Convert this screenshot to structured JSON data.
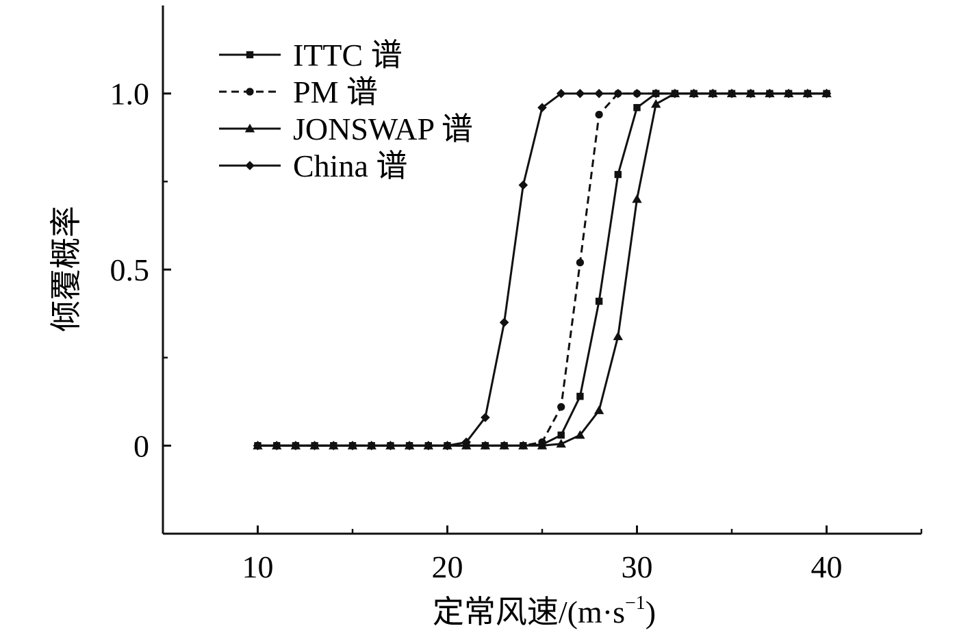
{
  "chart_data": {
    "type": "line",
    "xlabel": "定常风速/(m·s",
    "xlabel_sup": "−1",
    "xlabel_close": ")",
    "ylabel": "倾覆概率",
    "xlim": [
      5,
      45
    ],
    "ylim": [
      -0.25,
      1.25
    ],
    "x_ticks_major": [
      10,
      20,
      30,
      40
    ],
    "x_ticks_minor": [
      15,
      25,
      35,
      45
    ],
    "x_tick_labels": [
      "10",
      "20",
      "30",
      "40"
    ],
    "y_ticks_major": [
      0,
      0.5,
      1.0
    ],
    "y_ticks_minor": [
      0.25,
      0.75
    ],
    "y_tick_labels": [
      "0",
      "0.5",
      "1.0"
    ],
    "grid": false,
    "legend_position": "top-left",
    "x": [
      10,
      11,
      12,
      13,
      14,
      15,
      16,
      17,
      18,
      19,
      20,
      21,
      22,
      23,
      24,
      25,
      26,
      27,
      28,
      29,
      30,
      31,
      32,
      33,
      34,
      35,
      36,
      37,
      38,
      39,
      40
    ],
    "series": [
      {
        "name": "ITTC 谱",
        "marker": "square",
        "dash": "solid",
        "values": [
          0,
          0,
          0,
          0,
          0,
          0,
          0,
          0,
          0,
          0,
          0,
          0,
          0,
          0,
          0,
          0.003,
          0.03,
          0.14,
          0.41,
          0.77,
          0.96,
          1.0,
          1.0,
          1.0,
          1.0,
          1.0,
          1.0,
          1.0,
          1.0,
          1.0,
          1.0
        ]
      },
      {
        "name": "PM 谱",
        "marker": "circle",
        "dash": "dashed",
        "values": [
          0,
          0,
          0,
          0,
          0,
          0,
          0,
          0,
          0,
          0,
          0,
          0,
          0,
          0,
          0,
          0.01,
          0.11,
          0.52,
          0.94,
          1.0,
          1.0,
          1.0,
          1.0,
          1.0,
          1.0,
          1.0,
          1.0,
          1.0,
          1.0,
          1.0,
          1.0
        ]
      },
      {
        "name": "JONSWAP 谱",
        "marker": "triangle",
        "dash": "solid",
        "values": [
          0,
          0,
          0,
          0,
          0,
          0,
          0,
          0,
          0,
          0,
          0,
          0,
          0,
          0,
          0,
          0,
          0.005,
          0.03,
          0.1,
          0.31,
          0.7,
          0.97,
          1.0,
          1.0,
          1.0,
          1.0,
          1.0,
          1.0,
          1.0,
          1.0,
          1.0
        ]
      },
      {
        "name": "China 谱",
        "marker": "diamond",
        "dash": "solid",
        "values": [
          0,
          0,
          0,
          0,
          0,
          0,
          0,
          0,
          0,
          0,
          0,
          0.01,
          0.08,
          0.35,
          0.74,
          0.96,
          1.0,
          1.0,
          1.0,
          1.0,
          1.0,
          1.0,
          1.0,
          1.0,
          1.0,
          1.0,
          1.0,
          1.0,
          1.0,
          1.0,
          1.0
        ]
      }
    ]
  },
  "colors": {
    "ink": "#111111"
  }
}
